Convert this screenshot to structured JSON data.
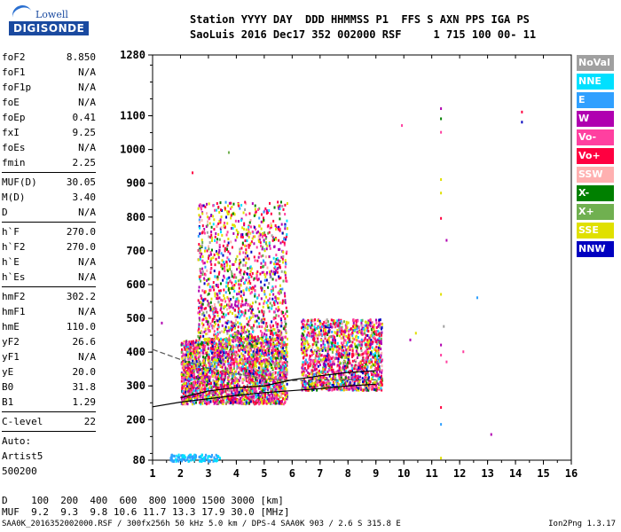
{
  "logo": {
    "line1": "Lowell",
    "line2": "DIGISONDE"
  },
  "header": {
    "line1": "Station YYYY DAY  DDD HHMMSS P1  FFS S AXN PPS IGA PS",
    "line2": "SaoLuis 2016 Dec17 352 002000 RSF     1 715 100 00- 11"
  },
  "params": [
    {
      "k": "foF2",
      "v": "8.850"
    },
    {
      "k": "foF1",
      "v": "N/A"
    },
    {
      "k": "foF1p",
      "v": "N/A"
    },
    {
      "k": "foE",
      "v": "N/A"
    },
    {
      "k": "foEp",
      "v": "0.41"
    },
    {
      "k": "fxI",
      "v": "9.25"
    },
    {
      "k": "foEs",
      "v": "N/A"
    },
    {
      "k": "fmin",
      "v": "2.25"
    },
    {
      "sep": true
    },
    {
      "k": "MUF(D)",
      "v": "30.05"
    },
    {
      "k": "M(D)",
      "v": "3.40"
    },
    {
      "k": "D",
      "v": "N/A"
    },
    {
      "sep": true
    },
    {
      "k": "h`F",
      "v": "270.0"
    },
    {
      "k": "h`F2",
      "v": "270.0"
    },
    {
      "k": "h`E",
      "v": "N/A"
    },
    {
      "k": "h`Es",
      "v": "N/A"
    },
    {
      "sep": true
    },
    {
      "k": "hmF2",
      "v": "302.2"
    },
    {
      "k": "hmF1",
      "v": "N/A"
    },
    {
      "k": "hmE",
      "v": "110.0"
    },
    {
      "k": "yF2",
      "v": "26.6"
    },
    {
      "k": "yF1",
      "v": "N/A"
    },
    {
      "k": "yE",
      "v": "20.0"
    },
    {
      "k": "B0",
      "v": "31.8"
    },
    {
      "k": "B1",
      "v": "1.29"
    },
    {
      "sep": true
    },
    {
      "k": "C-level",
      "v": "22"
    },
    {
      "sep": true
    },
    {
      "k": "Auto:",
      "v": ""
    },
    {
      "k": "Artist5",
      "v": ""
    },
    {
      "k": "500200",
      "v": ""
    }
  ],
  "legend": [
    {
      "label": "NoVal",
      "color": "#a0a0a0"
    },
    {
      "label": "NNE",
      "color": "#00e0ff"
    },
    {
      "label": "E",
      "color": "#30a0ff"
    },
    {
      "label": "W",
      "color": "#b000b0"
    },
    {
      "label": "Vo-",
      "color": "#ff40a0"
    },
    {
      "label": "Vo+",
      "color": "#ff0040"
    },
    {
      "label": "SSW",
      "color": "#ffb0b0"
    },
    {
      "label": "X-",
      "color": "#008000"
    },
    {
      "label": "X+",
      "color": "#70b050"
    },
    {
      "label": "SSE",
      "color": "#e0e000"
    },
    {
      "label": "NNW",
      "color": "#0000c0"
    }
  ],
  "muf_table": {
    "d_line": "D    100  200  400  600  800 1000 1500 3000 [km]",
    "muf_line": "MUF  9.2  9.3  9.8 10.6 11.7 13.3 17.9 30.0 [MHz]"
  },
  "footer": {
    "text": "SAA0K_2016352002000.RSF / 300fx256h 50 kHz 5.0 km / DPS-4 SAA0K 903 / 2.6 S 315.8 E",
    "version": "Ion2Png 1.3.17"
  },
  "chart_data": {
    "type": "scatter",
    "title": "",
    "xlabel": "",
    "ylabel": "",
    "x_range": [
      1,
      16
    ],
    "y_range": [
      80,
      1280
    ],
    "x_ticks": [
      1,
      2,
      3,
      4,
      5,
      6,
      7,
      8,
      9,
      10,
      11,
      12,
      13,
      14,
      15,
      16
    ],
    "y_ticks": [
      80,
      200,
      300,
      400,
      500,
      600,
      700,
      800,
      900,
      1000,
      1100,
      1280
    ],
    "grid": false,
    "legend_position": "right",
    "clusters": [
      {
        "x_range": [
          2.0,
          5.8
        ],
        "y_range": [
          250,
          440
        ],
        "n": 2600,
        "note": "F-region main trace"
      },
      {
        "x_range": [
          2.6,
          5.8
        ],
        "y_range": [
          440,
          850
        ],
        "n": 1300,
        "note": "spread F"
      },
      {
        "x_range": [
          6.3,
          9.2
        ],
        "y_range": [
          290,
          500
        ],
        "n": 1500,
        "note": "second hop trace"
      },
      {
        "x_range": [
          1.6,
          3.4
        ],
        "y_range": [
          80,
          100
        ],
        "n": 120,
        "note": "low height echoes"
      }
    ],
    "isolated_points": [
      {
        "x": 1.3,
        "y": 490
      },
      {
        "x": 2.4,
        "y": 935
      },
      {
        "x": 3.7,
        "y": 995
      },
      {
        "x": 9.9,
        "y": 1075
      },
      {
        "x": 11.3,
        "y": 1125
      },
      {
        "x": 11.3,
        "y": 1095
      },
      {
        "x": 11.3,
        "y": 1055
      },
      {
        "x": 11.3,
        "y": 915
      },
      {
        "x": 11.3,
        "y": 875
      },
      {
        "x": 11.3,
        "y": 800
      },
      {
        "x": 11.5,
        "y": 735
      },
      {
        "x": 11.3,
        "y": 575
      },
      {
        "x": 11.4,
        "y": 480
      },
      {
        "x": 11.3,
        "y": 425
      },
      {
        "x": 11.3,
        "y": 395
      },
      {
        "x": 11.3,
        "y": 240
      },
      {
        "x": 11.3,
        "y": 190
      },
      {
        "x": 11.3,
        "y": 90
      },
      {
        "x": 12.6,
        "y": 565
      },
      {
        "x": 13.1,
        "y": 160
      },
      {
        "x": 14.2,
        "y": 1115
      },
      {
        "x": 14.2,
        "y": 1085
      },
      {
        "x": 10.2,
        "y": 440
      },
      {
        "x": 10.4,
        "y": 460
      },
      {
        "x": 11.5,
        "y": 375
      },
      {
        "x": 12.1,
        "y": 405
      }
    ],
    "lines": [
      {
        "name": "",
        "points": [
          [
            1,
            238
          ],
          [
            2,
            252
          ],
          [
            3,
            262
          ],
          [
            4,
            272
          ],
          [
            5,
            280
          ],
          [
            6,
            286
          ],
          [
            7,
            292
          ],
          [
            8,
            300
          ],
          [
            9,
            305
          ]
        ]
      },
      {
        "name": "",
        "points": [
          [
            1,
            408
          ],
          [
            2,
            378
          ],
          [
            3,
            352
          ],
          [
            4,
            336
          ],
          [
            5,
            322
          ],
          [
            6,
            316
          ],
          [
            7,
            318
          ],
          [
            8,
            318
          ],
          [
            9,
            318
          ]
        ]
      },
      {
        "name": "",
        "points": [
          [
            2,
            265
          ],
          [
            3,
            285
          ],
          [
            4,
            295
          ],
          [
            5,
            300
          ],
          [
            6,
            318
          ],
          [
            7,
            330
          ],
          [
            8,
            340
          ],
          [
            9,
            345
          ]
        ]
      }
    ]
  }
}
